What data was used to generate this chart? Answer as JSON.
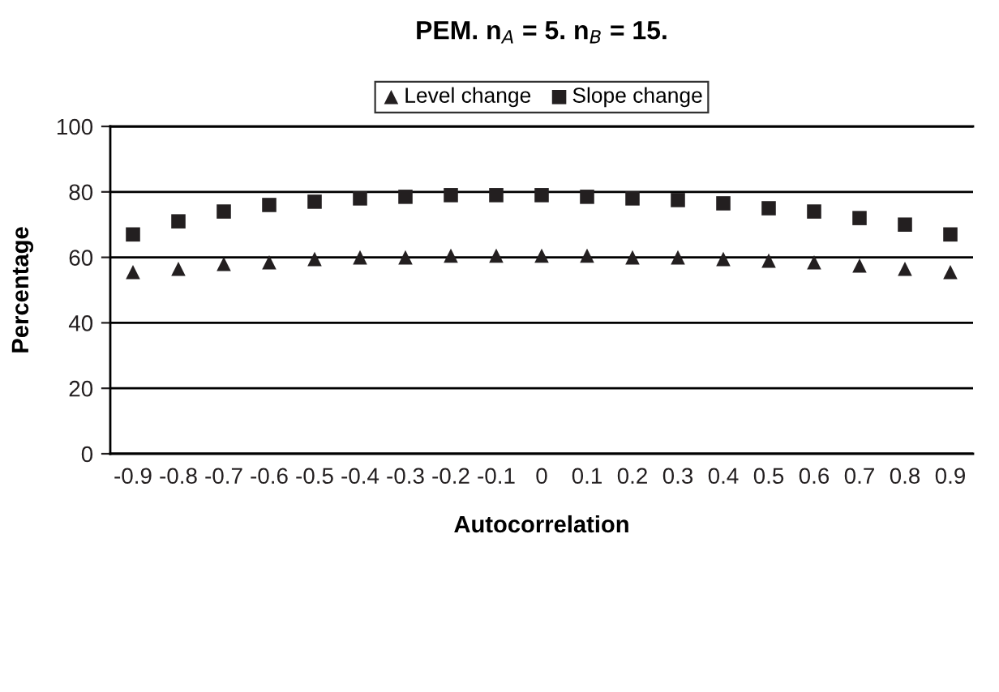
{
  "chart_data": {
    "type": "scatter",
    "title": "PEM. n$_{A}$ = 5. n$_{B}$ = 15.",
    "xlabel": "Autocorrelation",
    "ylabel": "Percentage",
    "categories": [
      "-0.9",
      "-0.8",
      "-0.7",
      "-0.6",
      "-0.5",
      "-0.4",
      "-0.3",
      "-0.2",
      "-0.1",
      "0",
      "0.1",
      "0.2",
      "0.3",
      "0.4",
      "0.5",
      "0.6",
      "0.7",
      "0.8",
      "0.9"
    ],
    "series": [
      {
        "name": "Level change",
        "color": "#231f20",
        "marker": "triangle",
        "values": [
          55.5,
          56.5,
          58,
          58.5,
          59.5,
          60,
          60,
          60.5,
          60.5,
          60.5,
          60.5,
          60,
          60,
          59.5,
          59,
          58.5,
          57.5,
          56.5,
          55.5
        ]
      },
      {
        "name": "Slope change",
        "color": "#231f20",
        "marker": "square",
        "values": [
          67,
          71,
          74,
          76,
          77,
          78,
          78.5,
          79,
          79,
          79,
          78.5,
          78,
          77.5,
          76.5,
          75,
          74,
          72,
          70,
          67
        ]
      }
    ],
    "ylim": [
      0,
      100
    ],
    "yticks": [
      0,
      20,
      40,
      60,
      80,
      100
    ],
    "grid": "y",
    "legend": "top"
  }
}
